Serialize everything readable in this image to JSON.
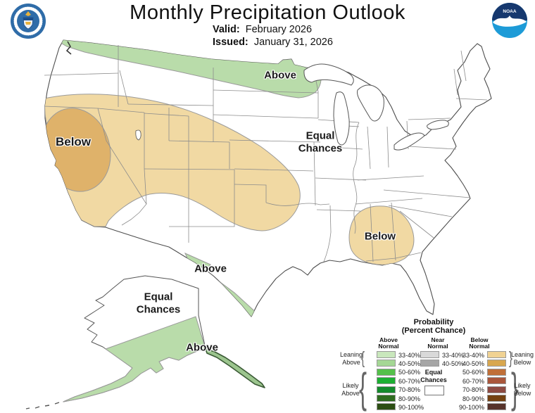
{
  "header": {
    "title": "Monthly Precipitation Outlook",
    "valid_label": "Valid:",
    "valid_value": "February 2026",
    "issued_label": "Issued:",
    "issued_value": "January 31, 2026",
    "noaa_logo_text": "NOAA"
  },
  "map": {
    "labels": {
      "north_band": "Above",
      "west": "Below",
      "midwest_line1": "Equal",
      "midwest_line2": "Chances",
      "southeast": "Below",
      "texas_coast": "Above",
      "alaska_line1": "Equal",
      "alaska_line2": "Chances",
      "alaska_south": "Above"
    },
    "regions": [
      {
        "name": "northern-tier",
        "category": "Above Normal",
        "probability": "33-40%",
        "color": "#b9dcaa"
      },
      {
        "name": "west",
        "category": "Below Normal",
        "probability": "33-40%",
        "color": "#f1d9a3"
      },
      {
        "name": "california-nevada",
        "category": "Below Normal",
        "probability": "40-50%",
        "color": "#dfb26a"
      },
      {
        "name": "southeast",
        "category": "Below Normal",
        "probability": "33-40%",
        "color": "#f1d9a3"
      },
      {
        "name": "south-texas-coast",
        "category": "Above Normal",
        "probability": "33-40%",
        "color": "#b9dcaa"
      },
      {
        "name": "alaska-south",
        "category": "Above Normal",
        "probability": "33-40%",
        "color": "#b9dcaa"
      },
      {
        "name": "alaska-panhandle",
        "category": "Above Normal",
        "probability": "33-40%",
        "color": "#9cc58e"
      },
      {
        "name": "alaska-north",
        "category": "Equal Chances",
        "probability": "",
        "color": "#ffffff"
      },
      {
        "name": "central-east-conus",
        "category": "Equal Chances",
        "probability": "",
        "color": "#ffffff"
      }
    ]
  },
  "legend": {
    "title_line1": "Probability",
    "title_line2": "(Percent Chance)",
    "brace_left": "{",
    "brace_right": "}",
    "above": {
      "header_line1": "Above",
      "header_line2": "Normal",
      "rows": [
        {
          "range": "33-40%",
          "color": "#c9e7bc"
        },
        {
          "range": "40-50%",
          "color": "#a5d795"
        },
        {
          "range": "50-60%",
          "color": "#54c04a"
        },
        {
          "range": "60-70%",
          "color": "#1caf32"
        },
        {
          "range": "70-80%",
          "color": "#148a2c"
        },
        {
          "range": "80-90%",
          "color": "#2e6b1f"
        },
        {
          "range": "90-100%",
          "color": "#2c4e13"
        }
      ]
    },
    "near": {
      "header_line1": "Near",
      "header_line2": "Normal",
      "rows": [
        {
          "range": "33-40%",
          "color": "#d9d9d9"
        },
        {
          "range": "40-50%",
          "color": "#a6a6a6"
        }
      ],
      "equal_line1": "Equal",
      "equal_line2": "Chances"
    },
    "below": {
      "header_line1": "Below",
      "header_line2": "Normal",
      "rows": [
        {
          "range": "33-40%",
          "color": "#f0d293"
        },
        {
          "range": "40-50%",
          "color": "#d8a74f"
        },
        {
          "range": "50-60%",
          "color": "#c06f38"
        },
        {
          "range": "60-70%",
          "color": "#a9563b"
        },
        {
          "range": "70-80%",
          "color": "#8d4a42"
        },
        {
          "range": "80-90%",
          "color": "#744111"
        },
        {
          "range": "90-100%",
          "color": "#57332b"
        }
      ]
    },
    "groups": {
      "leaning_above_line1": "Leaning",
      "leaning_above_line2": "Above",
      "likely_above_line1": "Likely",
      "likely_above_line2": "Above",
      "leaning_below_line1": "Leaning",
      "leaning_below_line2": "Below",
      "likely_below_line1": "Likely",
      "likely_below_line2": "Below"
    }
  }
}
